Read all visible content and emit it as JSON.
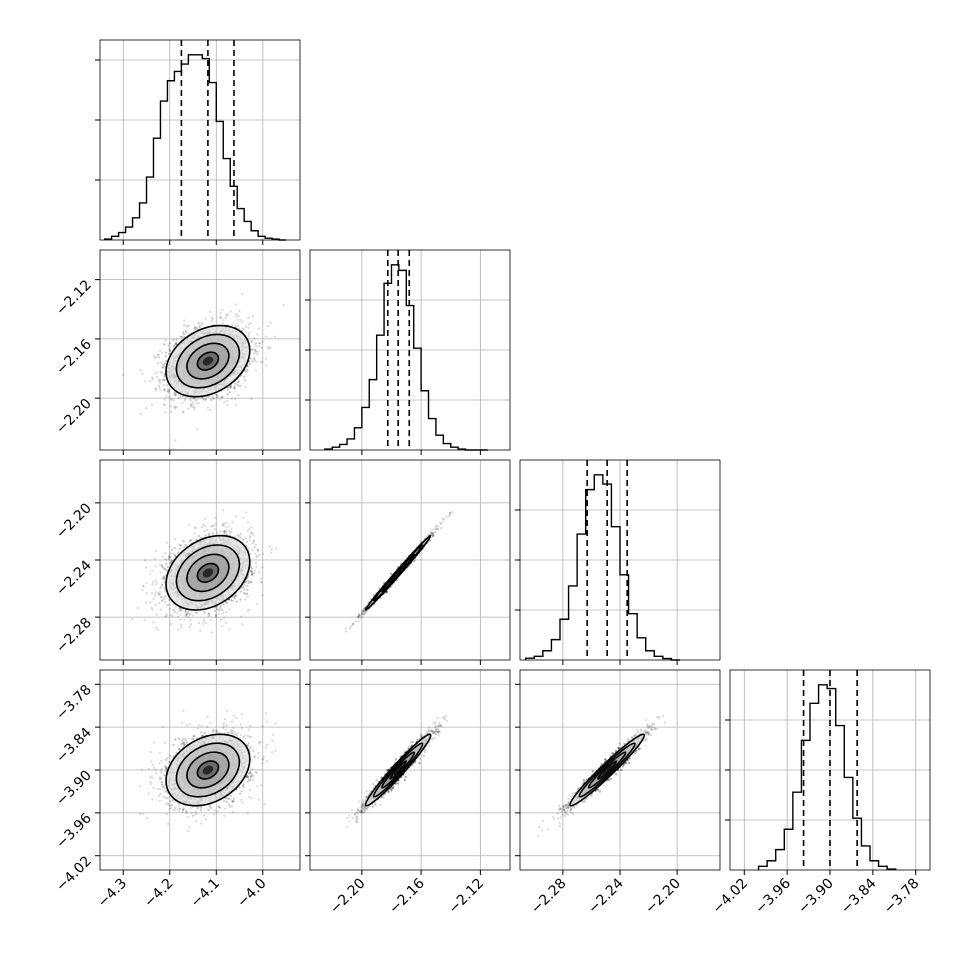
{
  "chart_data": {
    "type": "corner",
    "n_params": 4,
    "grid": true,
    "marginals": [
      {
        "param_index": 0,
        "xlim": [
          -4.35,
          -3.92
        ],
        "quantiles": [
          -4.175,
          -4.118,
          -4.062
        ],
        "bin_edges": [
          -4.34,
          -4.325,
          -4.31,
          -4.295,
          -4.28,
          -4.265,
          -4.25,
          -4.235,
          -4.22,
          -4.205,
          -4.19,
          -4.175,
          -4.16,
          -4.145,
          -4.13,
          -4.115,
          -4.1,
          -4.085,
          -4.07,
          -4.055,
          -4.04,
          -4.025,
          -4.01,
          -3.995,
          -3.98,
          -3.965,
          -3.95
        ],
        "counts": [
          0.005,
          0.02,
          0.04,
          0.07,
          0.12,
          0.2,
          0.34,
          0.55,
          0.75,
          0.86,
          0.91,
          0.95,
          1.0,
          1.0,
          0.98,
          0.85,
          0.64,
          0.44,
          0.29,
          0.17,
          0.1,
          0.05,
          0.02,
          0.01,
          0.005,
          0.0
        ],
        "ytick_fractions": [
          0.3,
          0.6,
          0.9
        ]
      },
      {
        "param_index": 1,
        "xlim": [
          -2.235,
          -2.1
        ],
        "quantiles": [
          -2.1825,
          -2.1755,
          -2.168
        ],
        "bin_edges": [
          -2.225,
          -2.22,
          -2.215,
          -2.21,
          -2.205,
          -2.2,
          -2.195,
          -2.19,
          -2.185,
          -2.18,
          -2.175,
          -2.17,
          -2.165,
          -2.16,
          -2.155,
          -2.15,
          -2.145,
          -2.14,
          -2.135,
          -2.13,
          -2.125,
          -2.12,
          -2.115
        ],
        "counts": [
          0.005,
          0.015,
          0.03,
          0.06,
          0.12,
          0.23,
          0.38,
          0.62,
          0.9,
          1.0,
          0.97,
          0.78,
          0.55,
          0.32,
          0.17,
          0.08,
          0.035,
          0.015,
          0.005,
          0.0,
          0.0,
          0.0
        ],
        "ytick_fractions": [
          0.25,
          0.5,
          0.75
        ]
      },
      {
        "param_index": 2,
        "xlim": [
          -2.31,
          -2.17
        ],
        "quantiles": [
          -2.263,
          -2.249,
          -2.235
        ],
        "bin_edges": [
          -2.306,
          -2.3,
          -2.294,
          -2.288,
          -2.282,
          -2.276,
          -2.27,
          -2.264,
          -2.258,
          -2.252,
          -2.246,
          -2.24,
          -2.234,
          -2.228,
          -2.222,
          -2.216,
          -2.21,
          -2.204,
          -2.198
        ],
        "counts": [
          0.01,
          0.02,
          0.05,
          0.11,
          0.22,
          0.4,
          0.68,
          0.92,
          1.0,
          0.95,
          0.72,
          0.46,
          0.25,
          0.12,
          0.05,
          0.02,
          0.008,
          0.0
        ],
        "ytick_fractions": [
          0.25,
          0.5,
          0.75
        ]
      },
      {
        "param_index": 3,
        "xlim": [
          -4.04,
          -3.76
        ],
        "quantiles": [
          -3.937,
          -3.9,
          -3.862
        ],
        "bin_edges": [
          -4.0,
          -3.988,
          -3.976,
          -3.964,
          -3.952,
          -3.94,
          -3.928,
          -3.916,
          -3.904,
          -3.892,
          -3.88,
          -3.868,
          -3.856,
          -3.844,
          -3.832,
          -3.82,
          -3.808
        ],
        "counts": [
          0.02,
          0.05,
          0.11,
          0.22,
          0.42,
          0.7,
          0.9,
          1.0,
          0.98,
          0.78,
          0.5,
          0.28,
          0.13,
          0.05,
          0.02,
          0.005
        ],
        "ytick_fractions": [
          0.25,
          0.5,
          0.75
        ]
      }
    ],
    "panels_2d": [
      {
        "row": 1,
        "col": 0,
        "xlim": [
          -4.35,
          -3.92
        ],
        "ylim": [
          -2.235,
          -2.1
        ],
        "center": [
          -4.118,
          -2.175
        ],
        "sd": [
          0.045,
          0.012
        ],
        "corr": 0.3,
        "n_points": 2400
      },
      {
        "row": 2,
        "col": 0,
        "xlim": [
          -4.35,
          -3.92
        ],
        "ylim": [
          -2.31,
          -2.17
        ],
        "center": [
          -4.118,
          -2.249
        ],
        "sd": [
          0.045,
          0.013
        ],
        "corr": 0.3,
        "n_points": 2400
      },
      {
        "row": 2,
        "col": 1,
        "xlim": [
          -2.235,
          -2.1
        ],
        "ylim": [
          -2.31,
          -2.17
        ],
        "center": [
          -2.1755,
          -2.249
        ],
        "sd": [
          0.011,
          0.013
        ],
        "corr": 0.995,
        "n_points": 1600
      },
      {
        "row": 3,
        "col": 0,
        "xlim": [
          -4.35,
          -3.92
        ],
        "ylim": [
          -4.04,
          -3.76
        ],
        "center": [
          -4.118,
          -3.9
        ],
        "sd": [
          0.045,
          0.025
        ],
        "corr": 0.3,
        "n_points": 2400
      },
      {
        "row": 3,
        "col": 1,
        "xlim": [
          -2.235,
          -2.1
        ],
        "ylim": [
          -4.04,
          -3.76
        ],
        "center": [
          -2.1755,
          -3.9
        ],
        "sd": [
          0.011,
          0.025
        ],
        "corr": 0.97,
        "n_points": 1800
      },
      {
        "row": 3,
        "col": 2,
        "xlim": [
          -2.31,
          -2.17
        ],
        "ylim": [
          -4.04,
          -3.76
        ],
        "center": [
          -2.249,
          -3.9
        ],
        "sd": [
          0.013,
          0.025
        ],
        "corr": 0.97,
        "n_points": 1800
      }
    ],
    "x_tick_labels": [
      [
        "−4.3",
        "−4.2",
        "−4.1",
        "−4.0"
      ],
      [
        "−2.20",
        "−2.16",
        "−2.12"
      ],
      [
        "−2.28",
        "−2.24",
        "−2.20"
      ],
      [
        "−4.02",
        "−3.96",
        "−3.90",
        "−3.84",
        "−3.78"
      ]
    ],
    "x_tick_values": [
      [
        -4.3,
        -4.2,
        -4.1,
        -4.0
      ],
      [
        -2.2,
        -2.16,
        -2.12
      ],
      [
        -2.28,
        -2.24,
        -2.2
      ],
      [
        -4.02,
        -3.96,
        -3.9,
        -3.84,
        -3.78
      ]
    ],
    "y_tick_labels": [
      [],
      [
        "−2.12",
        "−2.16",
        "−2.20"
      ],
      [
        "−2.20",
        "−2.24",
        "−2.28"
      ],
      [
        "−3.78",
        "−3.84",
        "−3.90",
        "−3.96",
        "−4.02"
      ]
    ],
    "y_tick_values": [
      [],
      [
        -2.12,
        -2.16,
        -2.2
      ],
      [
        -2.2,
        -2.24,
        -2.28
      ],
      [
        -3.78,
        -3.84,
        -3.9,
        -3.96,
        -4.02
      ]
    ]
  }
}
